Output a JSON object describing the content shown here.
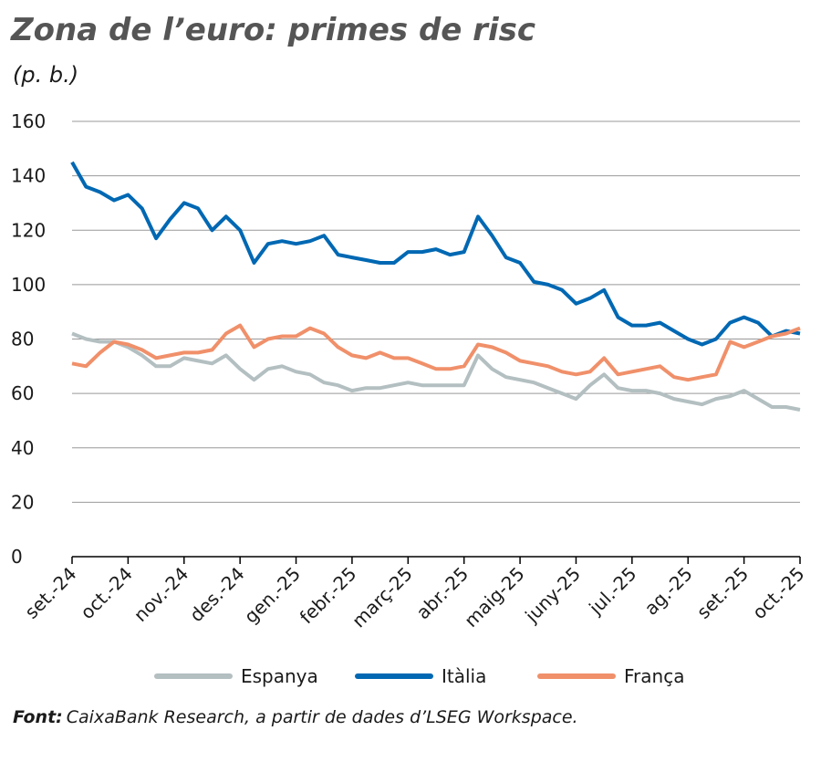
{
  "chart_data": {
    "type": "line",
    "title": "Zona de l’euro: primes de risc",
    "subtitle": "(p. b.)",
    "source_label": "Font:",
    "source": "CaixaBank Research, a partir de dades d’LSEG Workspace.",
    "categories": [
      "set.-24",
      null,
      null,
      null,
      "oct.-24",
      null,
      null,
      null,
      "nov.-24",
      null,
      null,
      null,
      "des.-24",
      null,
      null,
      null,
      "gen.-25",
      null,
      null,
      null,
      "febr.-25",
      null,
      null,
      null,
      "març-25",
      null,
      null,
      null,
      "abr.-25",
      null,
      null,
      null,
      "maig-25",
      null,
      null,
      null,
      "juny-25",
      null,
      null,
      null,
      "jul.-25",
      null,
      null,
      null,
      "ag.-25",
      null,
      null,
      null,
      "set.-25",
      null,
      null,
      null,
      "oct.-25"
    ],
    "series": [
      {
        "name": "Espanya",
        "color": "#b3bfc1",
        "values": [
          82,
          80,
          79,
          79,
          77,
          74,
          70,
          70,
          73,
          72,
          71,
          74,
          69,
          65,
          69,
          70,
          68,
          67,
          64,
          63,
          61,
          62,
          62,
          63,
          64,
          63,
          63,
          63,
          63,
          74,
          69,
          66,
          65,
          64,
          62,
          60,
          58,
          63,
          67,
          62,
          61,
          61,
          60,
          58,
          57,
          56,
          58,
          59,
          61,
          58,
          55,
          55,
          54
        ]
      },
      {
        "name": "Itàlia",
        "color": "#0068b3",
        "values": [
          145,
          136,
          134,
          131,
          133,
          128,
          117,
          124,
          130,
          128,
          120,
          125,
          120,
          108,
          115,
          116,
          115,
          116,
          118,
          111,
          110,
          109,
          108,
          108,
          112,
          112,
          113,
          111,
          112,
          125,
          118,
          110,
          108,
          101,
          100,
          98,
          93,
          95,
          98,
          88,
          85,
          85,
          86,
          83,
          80,
          78,
          80,
          86,
          88,
          86,
          81,
          83,
          82
        ]
      },
      {
        "name": "França",
        "color": "#f0906a",
        "values": [
          71,
          70,
          75,
          79,
          78,
          76,
          73,
          74,
          75,
          75,
          76,
          82,
          85,
          77,
          80,
          81,
          81,
          84,
          82,
          77,
          74,
          73,
          75,
          73,
          73,
          71,
          69,
          69,
          70,
          78,
          77,
          75,
          72,
          71,
          70,
          68,
          67,
          68,
          73,
          67,
          68,
          69,
          70,
          66,
          65,
          66,
          67,
          79,
          77,
          79,
          81,
          82,
          84
        ]
      }
    ],
    "ylim": [
      0,
      160
    ],
    "yticks": [
      0,
      20,
      40,
      60,
      80,
      100,
      120,
      140,
      160
    ],
    "grid": true
  }
}
